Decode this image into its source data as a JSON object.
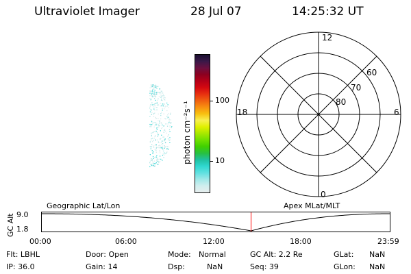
{
  "header": {
    "title": "Ultraviolet Imager",
    "date": "28 Jul 07",
    "time": "14:25:32 UT"
  },
  "colorbar": {
    "label": "photon cm⁻²s⁻¹",
    "tick_labels": [
      "100",
      "10"
    ],
    "colors": [
      "#1a1030",
      "#3a1848",
      "#6a1040",
      "#8c0020",
      "#b40018",
      "#d40810",
      "#e83010",
      "#f06010",
      "#f89010",
      "#f8c010",
      "#f8f050",
      "#e0f000",
      "#a8e800",
      "#70e000",
      "#40d000",
      "#28c040",
      "#20c0a0",
      "#30d8d0",
      "#60e0e0",
      "#a0e8e8",
      "#d0eeee",
      "#e8eeee"
    ],
    "scale": "log"
  },
  "polar_plot": {
    "mlt_labels": [
      "12",
      "18",
      "6",
      "0"
    ],
    "lat_labels": [
      "60",
      "70",
      "80"
    ]
  },
  "altitude_plot": {
    "left_label": "Geographic Lat/Lon",
    "right_label": "Apex MLat/MLT",
    "y_axis_label": "GC Alt",
    "y_ticks": [
      "9.0",
      "1.8"
    ],
    "x_ticks": [
      "00:00",
      "06:00",
      "12:00",
      "18:00",
      "23:59"
    ],
    "marker_time": "14:25:32",
    "curve_color": "#000000",
    "marker_color": "#ff0000"
  },
  "info": {
    "row1": {
      "flt": "Flt: LBHL",
      "door": "Door: Open",
      "mode_label": "Mode:",
      "mode_value": "Normal",
      "gc_alt": "GC Alt: 2.2 Re",
      "glat_label": "GLat:",
      "glat_value": "NaN"
    },
    "row2": {
      "ip": "IP: 36.0",
      "gain": "Gain: 14",
      "dsp_label": "Dsp:",
      "dsp_value": "NaN",
      "seq": "Seq: 39",
      "glon_label": "GLon:",
      "glon_value": "NaN"
    }
  }
}
